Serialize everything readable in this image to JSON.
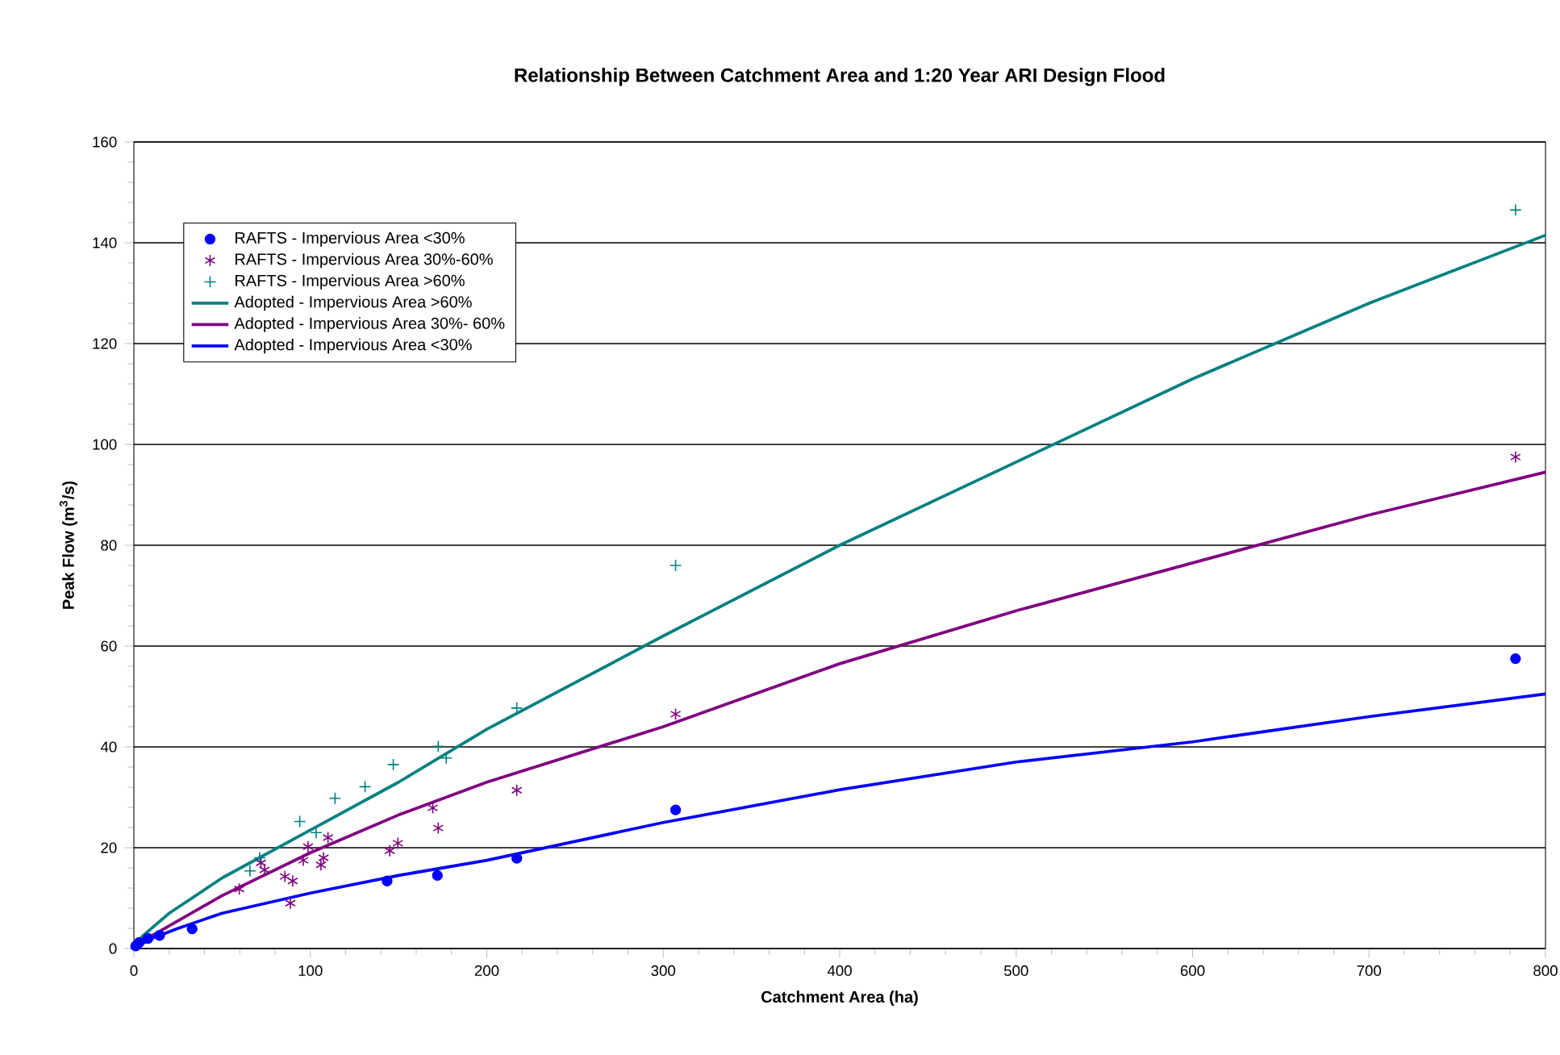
{
  "chart_data": {
    "type": "scatter",
    "title": "Relationship Between Catchment Area and 1:20 Year ARI Design Flood",
    "xlabel": "Catchment Area (ha)",
    "ylabel": "Peak Flow (m$^{3}$/s)",
    "xlim": [
      0,
      800
    ],
    "xticks": [
      0,
      100,
      200,
      300,
      400,
      500,
      600,
      700,
      800
    ],
    "ylim": [
      0,
      160
    ],
    "yticks": [
      0,
      20,
      40,
      60,
      80,
      100,
      120,
      140,
      160
    ],
    "grid": "y",
    "legend": "top left",
    "series": [
      {
        "name": "RAFTS - Impervious Area <30%",
        "marker": "circle",
        "color": "#0000ff",
        "x": [
          1,
          3,
          8,
          14.6,
          33,
          143.5,
          172,
          217,
          307,
          783
        ],
        "values": [
          0.5,
          1.2,
          2,
          2.6,
          3.9,
          13.4,
          14.5,
          17.9,
          27.5,
          57.5
        ]
      },
      {
        "name": "RAFTS - Impervious Area 30%-60%",
        "marker": "cross",
        "color": "#800080",
        "x": [
          59.7,
          72,
          74,
          85.6,
          88.7,
          90,
          96,
          98.7,
          106,
          107.5,
          110,
          145,
          149.6,
          169.4,
          172.5,
          217,
          307,
          783
        ],
        "values": [
          11.8,
          17,
          15.6,
          14.3,
          9,
          13.4,
          17.5,
          20.2,
          16.6,
          18,
          22,
          19.4,
          20.9,
          27.9,
          23.9,
          31.4,
          46.5,
          97.5
        ]
      },
      {
        "name": "RAFTS - Impervious Area >60%",
        "marker": "cross",
        "color": "#008080",
        "x": [
          65.8,
          71.3,
          94,
          103.3,
          114,
          131,
          147,
          172.5,
          177,
          217,
          307,
          783
        ],
        "values": [
          15.4,
          18,
          25.2,
          23,
          29.8,
          32.1,
          36.5,
          40.1,
          37.8,
          47.7,
          76,
          146.5
        ]
      },
      {
        "name": "Adopted - Impervious Area >60%",
        "type": "line",
        "marker": "none",
        "color": "#008080",
        "x": [
          0,
          5,
          20,
          50,
          100,
          150,
          200,
          300,
          400,
          500,
          600,
          700,
          800
        ],
        "values": [
          0,
          2.5,
          7,
          14,
          23.5,
          33,
          43.5,
          62,
          80,
          96.5,
          113,
          128,
          141.5
        ]
      },
      {
        "name": "Adopted - Impervious Area 30%- 60%",
        "type": "line",
        "marker": "none",
        "color": "#800080",
        "x": [
          0,
          10,
          25,
          50,
          100,
          150,
          200,
          300,
          400,
          500,
          600,
          700,
          800
        ],
        "values": [
          0,
          2.5,
          5.5,
          10.5,
          19,
          26.5,
          33,
          44,
          56.5,
          67,
          76.5,
          86,
          94.5
        ]
      },
      {
        "name": "Adopted - Impervious Area <30%",
        "type": "line",
        "marker": "none",
        "color": "#0000ff",
        "x": [
          0,
          10,
          25,
          50,
          100,
          150,
          200,
          300,
          400,
          500,
          600,
          700,
          800
        ],
        "values": [
          0,
          2,
          4,
          7,
          11,
          14.5,
          17.5,
          25,
          31.5,
          37,
          41,
          46,
          50.5
        ]
      }
    ]
  }
}
